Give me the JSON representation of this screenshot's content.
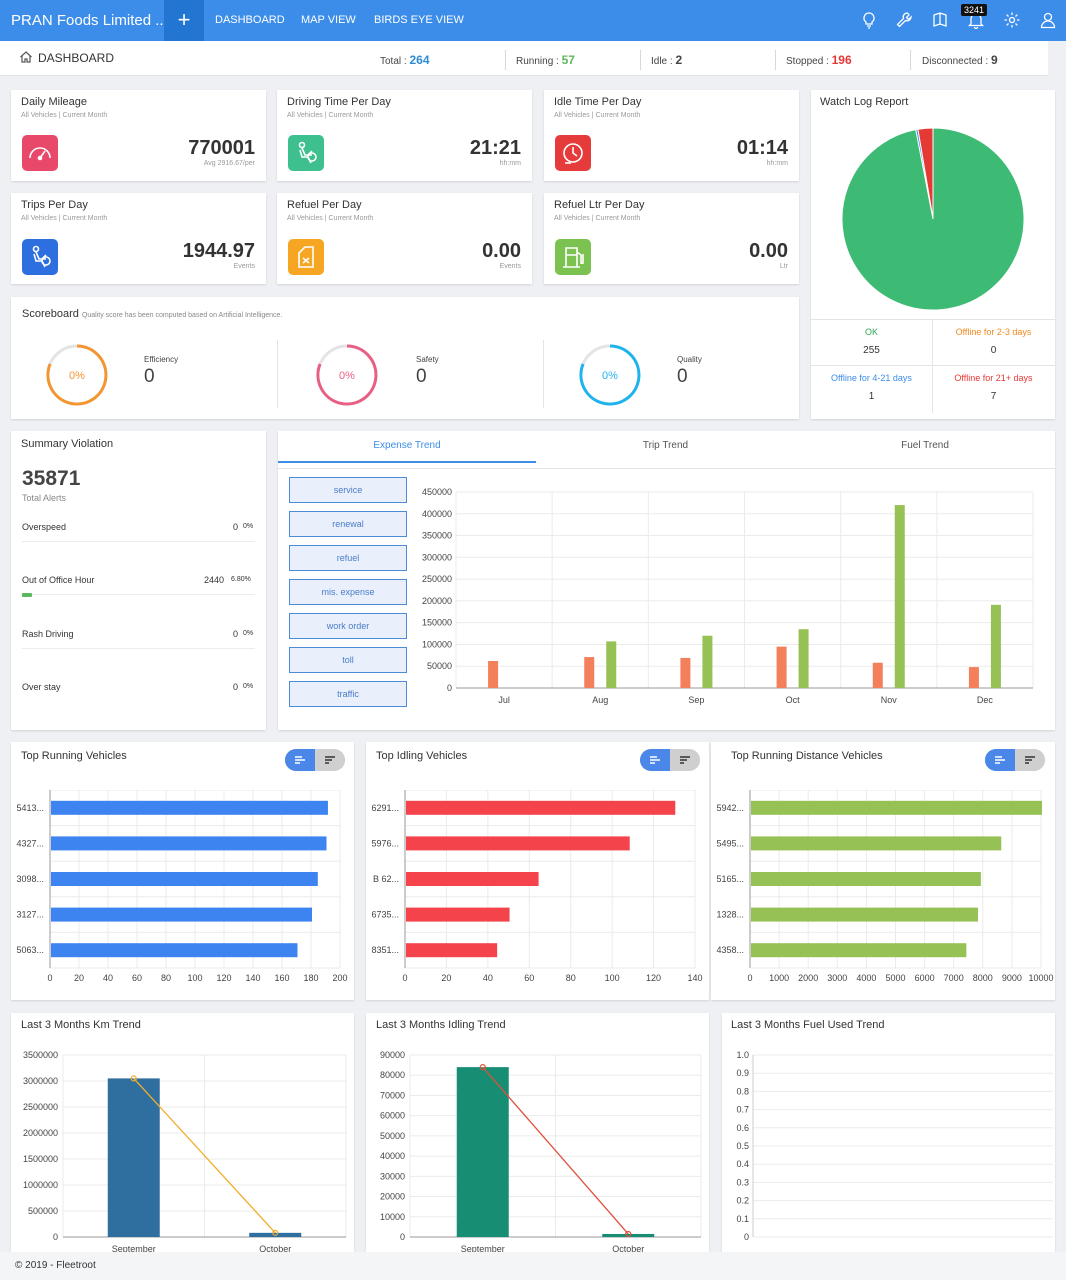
{
  "header": {
    "company": "PRAN Foods Limited ...",
    "add_label": "+",
    "nav": [
      "DASHBOARD",
      "MAP VIEW",
      "BIRDS EYE VIEW"
    ],
    "notification_count": "3241"
  },
  "breadcrumb": {
    "title": "DASHBOARD"
  },
  "status": {
    "total_label": "Total :",
    "total": "264",
    "running_label": "Running :",
    "running": "57",
    "idle_label": "Idle :",
    "idle": "2",
    "stopped_label": "Stopped :",
    "stopped": "196",
    "disconnected_label": "Disconnected :",
    "disconnected": "9"
  },
  "colors": {
    "running": "#5cb85c",
    "stopped": "#e53935",
    "total": "#2d8cd6",
    "accent": "#3c8dea"
  },
  "metrics": [
    {
      "title": "Daily Mileage",
      "sub": "All Vehicles | Current Month",
      "value": "770001",
      "unit": "Avg 2916.67/per",
      "icon": "speedometer-icon",
      "color": "#e8496a"
    },
    {
      "title": "Driving Time Per Day",
      "sub": "All Vehicles | Current Month",
      "value": "21:21",
      "unit": "hh:mm",
      "icon": "driver-icon",
      "color": "#3dbf8e"
    },
    {
      "title": "Idle Time Per Day",
      "sub": "All Vehicles | Current Month",
      "value": "01:14",
      "unit": "hh:mm",
      "icon": "idle-clock-icon",
      "color": "#e63b3b"
    },
    {
      "title": "Trips Per Day",
      "sub": "All Vehicles | Current Month",
      "value": "1944.97",
      "unit": "Events",
      "icon": "trip-icon",
      "color": "#2e6fe0"
    },
    {
      "title": "Refuel Per Day",
      "sub": "All Vehicles | Current Month",
      "value": "0.00",
      "unit": "Events",
      "icon": "fuel-can-icon",
      "color": "#f6a623"
    },
    {
      "title": "Refuel Ltr Per Day",
      "sub": "All Vehicles | Current Month",
      "value": "0.00",
      "unit": "Ltr",
      "icon": "fuel-pump-icon",
      "color": "#7cc251"
    }
  ],
  "scoreboard": {
    "title": "Scoreboard",
    "note": "Quality score has been computed based on Artificial Intelligence.",
    "items": [
      {
        "label": "Efficiency",
        "value": "0",
        "pct": "0%",
        "color": "#f39530"
      },
      {
        "label": "Safety",
        "value": "0",
        "pct": "0%",
        "color": "#e95f84"
      },
      {
        "label": "Quality",
        "value": "0",
        "pct": "0%",
        "color": "#1fb3ee"
      }
    ]
  },
  "watchlog": {
    "title": "Watch Log Report",
    "cells": [
      {
        "label": "OK",
        "value": "255",
        "color": "#34a853"
      },
      {
        "label": "Offline for 2-3 days",
        "value": "0",
        "color": "#f08a1c"
      },
      {
        "label": "Offline for 4-21 days",
        "value": "1",
        "color": "#3c8dea"
      },
      {
        "label": "Offline for 21+ days",
        "value": "7",
        "color": "#e53935"
      }
    ]
  },
  "summary": {
    "title": "Summary Violation",
    "total": "35871",
    "total_label": "Total Alerts",
    "rows": [
      {
        "label": "Overspeed",
        "count": "0",
        "pct": "0%",
        "fill": 0
      },
      {
        "label": "Out of Office Hour",
        "count": "2440",
        "pct": "6.80%",
        "fill": 0.068
      },
      {
        "label": "Rash Driving",
        "count": "0",
        "pct": "0%",
        "fill": 0
      },
      {
        "label": "Over stay",
        "count": "0",
        "pct": "0%",
        "fill": 0
      }
    ]
  },
  "trend_tabs": [
    "Expense Trend",
    "Trip Trend",
    "Fuel Trend"
  ],
  "expense_buttons": [
    "service",
    "renewal",
    "refuel",
    "mis. expense",
    "work order",
    "toll",
    "traffic"
  ],
  "top_panels": {
    "titles": [
      "Top Running Vehicles",
      "Top Idling Vehicles",
      "Top Running Distance Vehicles"
    ]
  },
  "month_panels": {
    "titles": [
      "Last 3 Months Km Trend",
      "Last 3 Months Idling Trend",
      "Last 3 Months Fuel Used Trend"
    ]
  },
  "footer": {
    "text": "© 2019 - Fleetroot"
  },
  "chart_data": [
    {
      "id": "watchlog",
      "type": "pie",
      "categories": [
        "OK",
        "Offline for 2-3 days",
        "Offline for 4-21 days",
        "Offline for 21+ days"
      ],
      "values": [
        255,
        0,
        1,
        7
      ],
      "colors": [
        "#3dbb74",
        "#f08a1c",
        "#3c8dea",
        "#e53935"
      ]
    },
    {
      "id": "expense",
      "type": "bar",
      "categories": [
        "Jul",
        "Aug",
        "Sep",
        "Oct",
        "Nov",
        "Dec"
      ],
      "ylim": [
        0,
        450000
      ],
      "yticks": [
        0,
        50000,
        100000,
        150000,
        200000,
        250000,
        300000,
        350000,
        400000,
        450000
      ],
      "series": [
        {
          "color": "#f47f5b",
          "values": [
            62000,
            71000,
            69000,
            95000,
            58000,
            48000
          ]
        },
        {
          "color": "#95c155",
          "values": [
            0,
            107000,
            120000,
            135000,
            420000,
            191000
          ]
        }
      ],
      "grid": true
    },
    {
      "id": "top_running",
      "type": "bar",
      "orientation": "horizontal",
      "categories": [
        "5413...",
        "4327...",
        "3098...",
        "3127...",
        "5063..."
      ],
      "values": [
        191,
        190,
        184,
        180,
        170
      ],
      "xlim": [
        0,
        200
      ],
      "xticks": [
        0,
        20,
        40,
        60,
        80,
        100,
        120,
        140,
        160,
        180,
        200
      ],
      "color": "#3e84f0",
      "grid": true
    },
    {
      "id": "top_idling",
      "type": "bar",
      "orientation": "horizontal",
      "categories": [
        "6291...",
        "5976...",
        "B 62...",
        "6735...",
        "8351..."
      ],
      "values": [
        130,
        108,
        64,
        50,
        44
      ],
      "xlim": [
        0,
        140
      ],
      "xticks": [
        0,
        20,
        40,
        60,
        80,
        100,
        120,
        140
      ],
      "color": "#f4434a",
      "grid": true
    },
    {
      "id": "top_distance",
      "type": "bar",
      "orientation": "horizontal",
      "categories": [
        "5942...",
        "5495...",
        "5165...",
        "1328...",
        "4358..."
      ],
      "values": [
        10000,
        8600,
        7900,
        7800,
        7400
      ],
      "xlim": [
        0,
        10000
      ],
      "xticks": [
        0,
        1000,
        2000,
        3000,
        4000,
        5000,
        6000,
        7000,
        8000,
        9000,
        10000
      ],
      "color": "#95c155",
      "grid": true
    },
    {
      "id": "km_trend",
      "type": "bar+line",
      "categories": [
        "September",
        "October"
      ],
      "values": [
        3050000,
        80000
      ],
      "ylim": [
        0,
        3500000
      ],
      "yticks": [
        0,
        500000,
        1000000,
        1500000,
        2000000,
        2500000,
        3000000,
        3500000
      ],
      "bar_color": "#2f6f9f",
      "line_color": "#f2ae2d",
      "grid": true
    },
    {
      "id": "idling_trend",
      "type": "bar+line",
      "categories": [
        "September",
        "October"
      ],
      "values": [
        84000,
        1500
      ],
      "ylim": [
        0,
        90000
      ],
      "yticks": [
        0,
        10000,
        20000,
        30000,
        40000,
        50000,
        60000,
        70000,
        80000,
        90000
      ],
      "bar_color": "#178e73",
      "line_color": "#e0503a",
      "grid": true
    },
    {
      "id": "fuel_trend",
      "type": "line",
      "categories": [],
      "values": [],
      "ylim": [
        0,
        1.0
      ],
      "yticks": [
        0,
        0.1,
        0.2,
        0.3,
        0.4,
        0.5,
        0.6,
        0.7,
        0.8,
        0.9,
        1.0
      ],
      "grid": true
    }
  ]
}
